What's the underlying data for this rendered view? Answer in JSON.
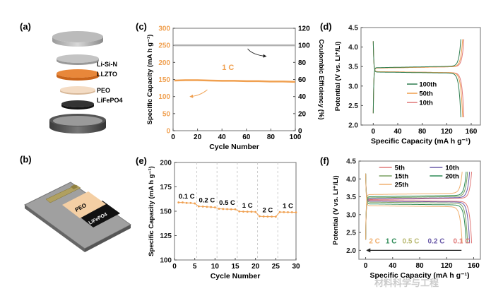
{
  "panels": {
    "a": {
      "label": "(a)",
      "layers": [
        "Li-Si-N",
        "LLZTO",
        "PEO",
        "LiFePO4"
      ]
    },
    "b": {
      "label": "(b)",
      "layers": [
        "PEO",
        "LiFePO4"
      ]
    },
    "c": {
      "label": "(c)"
    },
    "d": {
      "label": "(d)"
    },
    "e": {
      "label": "(e)"
    },
    "f": {
      "label": "(f)"
    }
  },
  "watermark": "材料科学与工程",
  "colors": {
    "capacity": "#f0a050",
    "ce": "#b0b0b0",
    "axis_left_c": "#f0a050",
    "frame": "#888888"
  },
  "chart_data": [
    {
      "id": "c",
      "type": "scatter",
      "xlabel": "Cycle Number",
      "ylabel": "Specific Capacity (mA h g⁻¹)",
      "y2label": "Coulombic Efficiency (%)",
      "xlim": [
        0,
        100
      ],
      "ylim": [
        0,
        300
      ],
      "y2lim": [
        0,
        120
      ],
      "xticks": [
        0,
        20,
        40,
        60,
        80,
        100
      ],
      "yticks": [
        0,
        50,
        100,
        150,
        200,
        250,
        300
      ],
      "y2ticks": [
        0,
        20,
        40,
        60,
        80,
        100,
        120
      ],
      "annotation": "1 C",
      "series": [
        {
          "axis": "left",
          "color": "#f0a050",
          "x": [
            1,
            10,
            20,
            30,
            40,
            50,
            60,
            70,
            80,
            90,
            100
          ],
          "y": [
            147,
            148,
            148,
            147,
            146,
            146,
            145,
            145,
            144,
            144,
            143
          ]
        },
        {
          "axis": "right",
          "color": "#b0b0b0",
          "x": [
            1,
            10,
            20,
            30,
            40,
            50,
            60,
            70,
            80,
            90,
            100
          ],
          "y": [
            100,
            100,
            100,
            100,
            100,
            100,
            100,
            100,
            100,
            100,
            100
          ]
        }
      ]
    },
    {
      "id": "d",
      "type": "line",
      "xlabel": "Specific Capacity (mA h g⁻¹)",
      "ylabel": "Potential (V vs. Li⁺/Li)",
      "xlim": [
        -20,
        175
      ],
      "ylim": [
        2.0,
        4.5
      ],
      "xticks": [
        0,
        40,
        80,
        120,
        160
      ],
      "yticks": [
        2.0,
        2.5,
        3.0,
        3.5,
        4.0,
        4.5
      ],
      "legend_position": "center",
      "series": [
        {
          "name": "10th",
          "color": "#e07878",
          "capacity": 148,
          "charge_plateau": 3.46,
          "discharge_plateau": 3.37
        },
        {
          "name": "50th",
          "color": "#f0a050",
          "capacity": 146,
          "charge_plateau": 3.46,
          "discharge_plateau": 3.37
        },
        {
          "name": "100th",
          "color": "#2e7d4f",
          "capacity": 143,
          "charge_plateau": 3.47,
          "discharge_plateau": 3.36
        }
      ]
    },
    {
      "id": "e",
      "type": "scatter",
      "xlabel": "Cycle Number",
      "ylabel": "Specific Capacity (mA h g⁻¹)",
      "xlim": [
        0,
        30
      ],
      "ylim": [
        100,
        200
      ],
      "xticks": [
        0,
        5,
        10,
        15,
        20,
        25,
        30
      ],
      "yticks": [
        100,
        125,
        150,
        175,
        200
      ],
      "dividers": [
        5,
        10,
        15,
        20,
        25
      ],
      "rate_labels": [
        "0.1 C",
        "0.2 C",
        "0.5 C",
        "1 C",
        "2 C",
        "1 C"
      ],
      "color": "#f0a050",
      "x": [
        1,
        2,
        3,
        4,
        5,
        6,
        7,
        8,
        9,
        10,
        11,
        12,
        13,
        14,
        15,
        16,
        17,
        18,
        19,
        20,
        21,
        22,
        23,
        24,
        25,
        26,
        27,
        28,
        29,
        30
      ],
      "y": [
        159,
        159,
        158.5,
        158.5,
        158,
        155,
        154.8,
        154.5,
        154.3,
        154,
        152.5,
        152.3,
        152.2,
        152,
        152,
        149.8,
        149.6,
        149.5,
        149.5,
        149.3,
        144.8,
        144.6,
        144.5,
        144.5,
        144.4,
        149.2,
        149.1,
        149,
        149,
        148.8
      ]
    },
    {
      "id": "f",
      "type": "line",
      "xlabel": "Specific Capacity (mA h g⁻¹)",
      "ylabel": "Potential (V vs. Li⁺/Li)",
      "xlim": [
        -10,
        170
      ],
      "ylim": [
        1.75,
        4.5
      ],
      "xticks": [
        0,
        40,
        80,
        120,
        160
      ],
      "yticks": [
        2.0,
        2.5,
        3.0,
        3.5,
        4.0,
        4.5
      ],
      "legend_position": "top",
      "series": [
        {
          "name": "5th",
          "color": "#e07878",
          "capacity": 157,
          "charge_plateau": 3.42,
          "discharge_plateau": 3.4
        },
        {
          "name": "10th",
          "color": "#6a5aa8",
          "capacity": 154,
          "charge_plateau": 3.44,
          "discharge_plateau": 3.38
        },
        {
          "name": "15th",
          "color": "#7aa060",
          "capacity": 151,
          "charge_plateau": 3.47,
          "discharge_plateau": 3.35
        },
        {
          "name": "20th",
          "color": "#2e8b57",
          "capacity": 149,
          "charge_plateau": 3.5,
          "discharge_plateau": 3.3
        },
        {
          "name": "25th",
          "color": "#f0b070",
          "capacity": 143,
          "charge_plateau": 3.56,
          "discharge_plateau": 3.25
        }
      ],
      "rate_labels": [
        {
          "text": "2 C",
          "color": "#f0b070"
        },
        {
          "text": "1 C",
          "color": "#2e8b57"
        },
        {
          "text": "0.5 C",
          "color": "#b8b870"
        },
        {
          "text": "0.2 C",
          "color": "#6a5aa8"
        },
        {
          "text": "0.1 C",
          "color": "#e07878"
        }
      ]
    }
  ]
}
